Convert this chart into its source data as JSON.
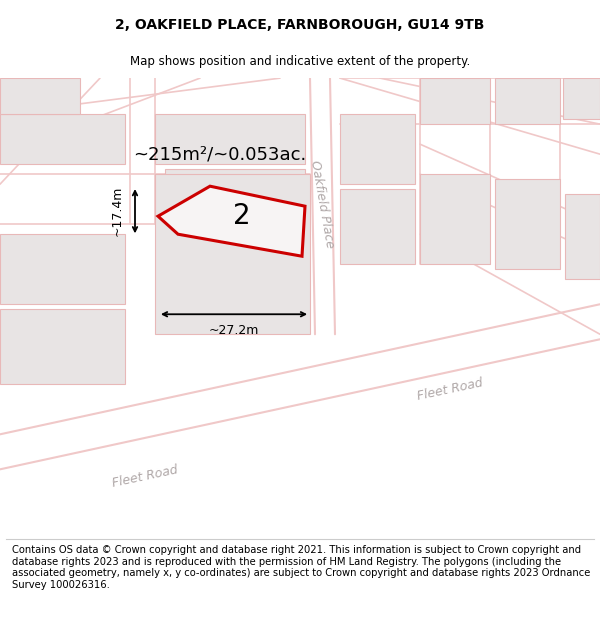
{
  "title": "2, OAKFIELD PLACE, FARNBOROUGH, GU14 9TB",
  "subtitle": "Map shows position and indicative extent of the property.",
  "footer": "Contains OS data © Crown copyright and database right 2021. This information is subject to Crown copyright and database rights 2023 and is reproduced with the permission of HM Land Registry. The polygons (including the associated geometry, namely x, y co-ordinates) are subject to Crown copyright and database rights 2023 Ordnance Survey 100026316.",
  "area_text": "~215m²/~0.053ac.",
  "property_label": "2",
  "width_label": "~27.2m",
  "height_label": "~17.4m",
  "road_label_1": "Oakfield Place",
  "road_label_2a": "Fleet Road",
  "road_label_2b": "Fleet Road",
  "map_bg": "#f7f4f4",
  "block_bg": "#e8e4e4",
  "block_edge": "#e8b8b8",
  "road_line": "#f0c8c8",
  "plot_color": "#cc0000",
  "title_fontsize": 10,
  "subtitle_fontsize": 8.5,
  "footer_fontsize": 7.2,
  "area_fontsize": 13,
  "label_fontsize": 9,
  "road_label_fontsize": 9,
  "property_num_fontsize": 20
}
